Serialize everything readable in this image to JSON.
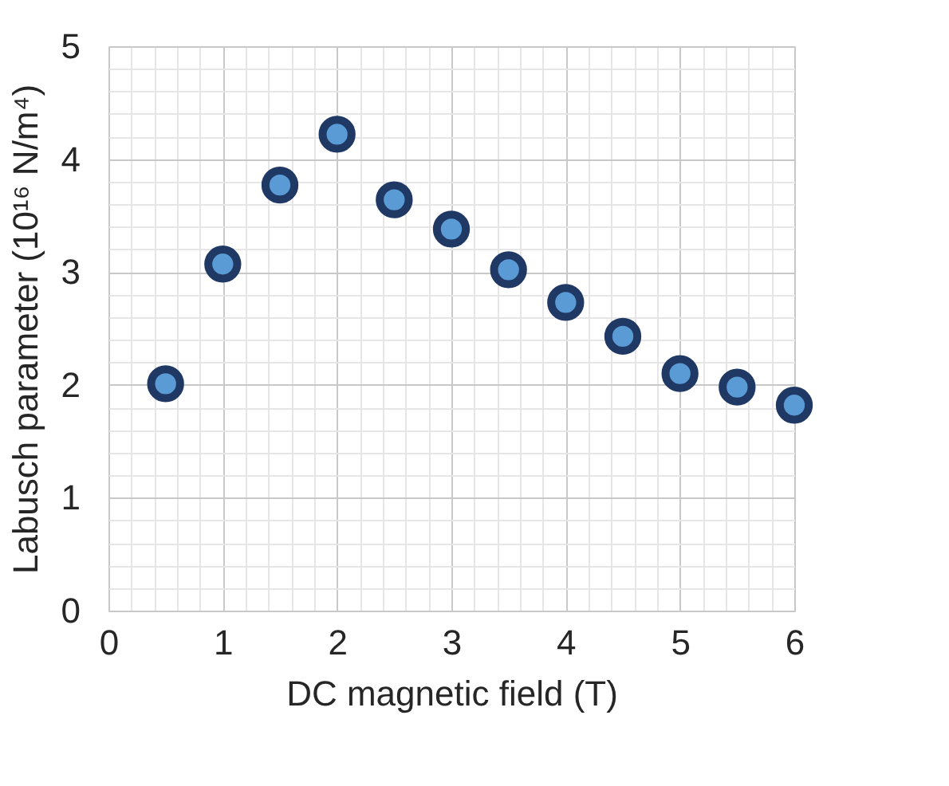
{
  "chart_data": {
    "type": "scatter",
    "xlabel": "DC magnetic field (T)",
    "ylabel": "Labusch parameter (10¹⁶ N/m⁴)",
    "x": [
      0.5,
      1,
      1.5,
      2,
      2.5,
      3,
      3.5,
      4,
      4.5,
      5,
      5.5,
      6
    ],
    "series": [
      {
        "color": "#1f3864",
        "values": [
          2.01,
          3.07,
          3.77,
          4.22,
          3.64,
          3.38,
          3.02,
          2.73,
          2.43,
          2.1,
          1.98,
          1.82
        ]
      }
    ],
    "xlim": [
      0,
      6
    ],
    "xticks": [
      0,
      1,
      2,
      3,
      4,
      5,
      6
    ],
    "ylim": [
      0,
      5
    ],
    "yticks": [
      0,
      1,
      2,
      3,
      4,
      5
    ],
    "grid": true,
    "marker": "circle"
  }
}
